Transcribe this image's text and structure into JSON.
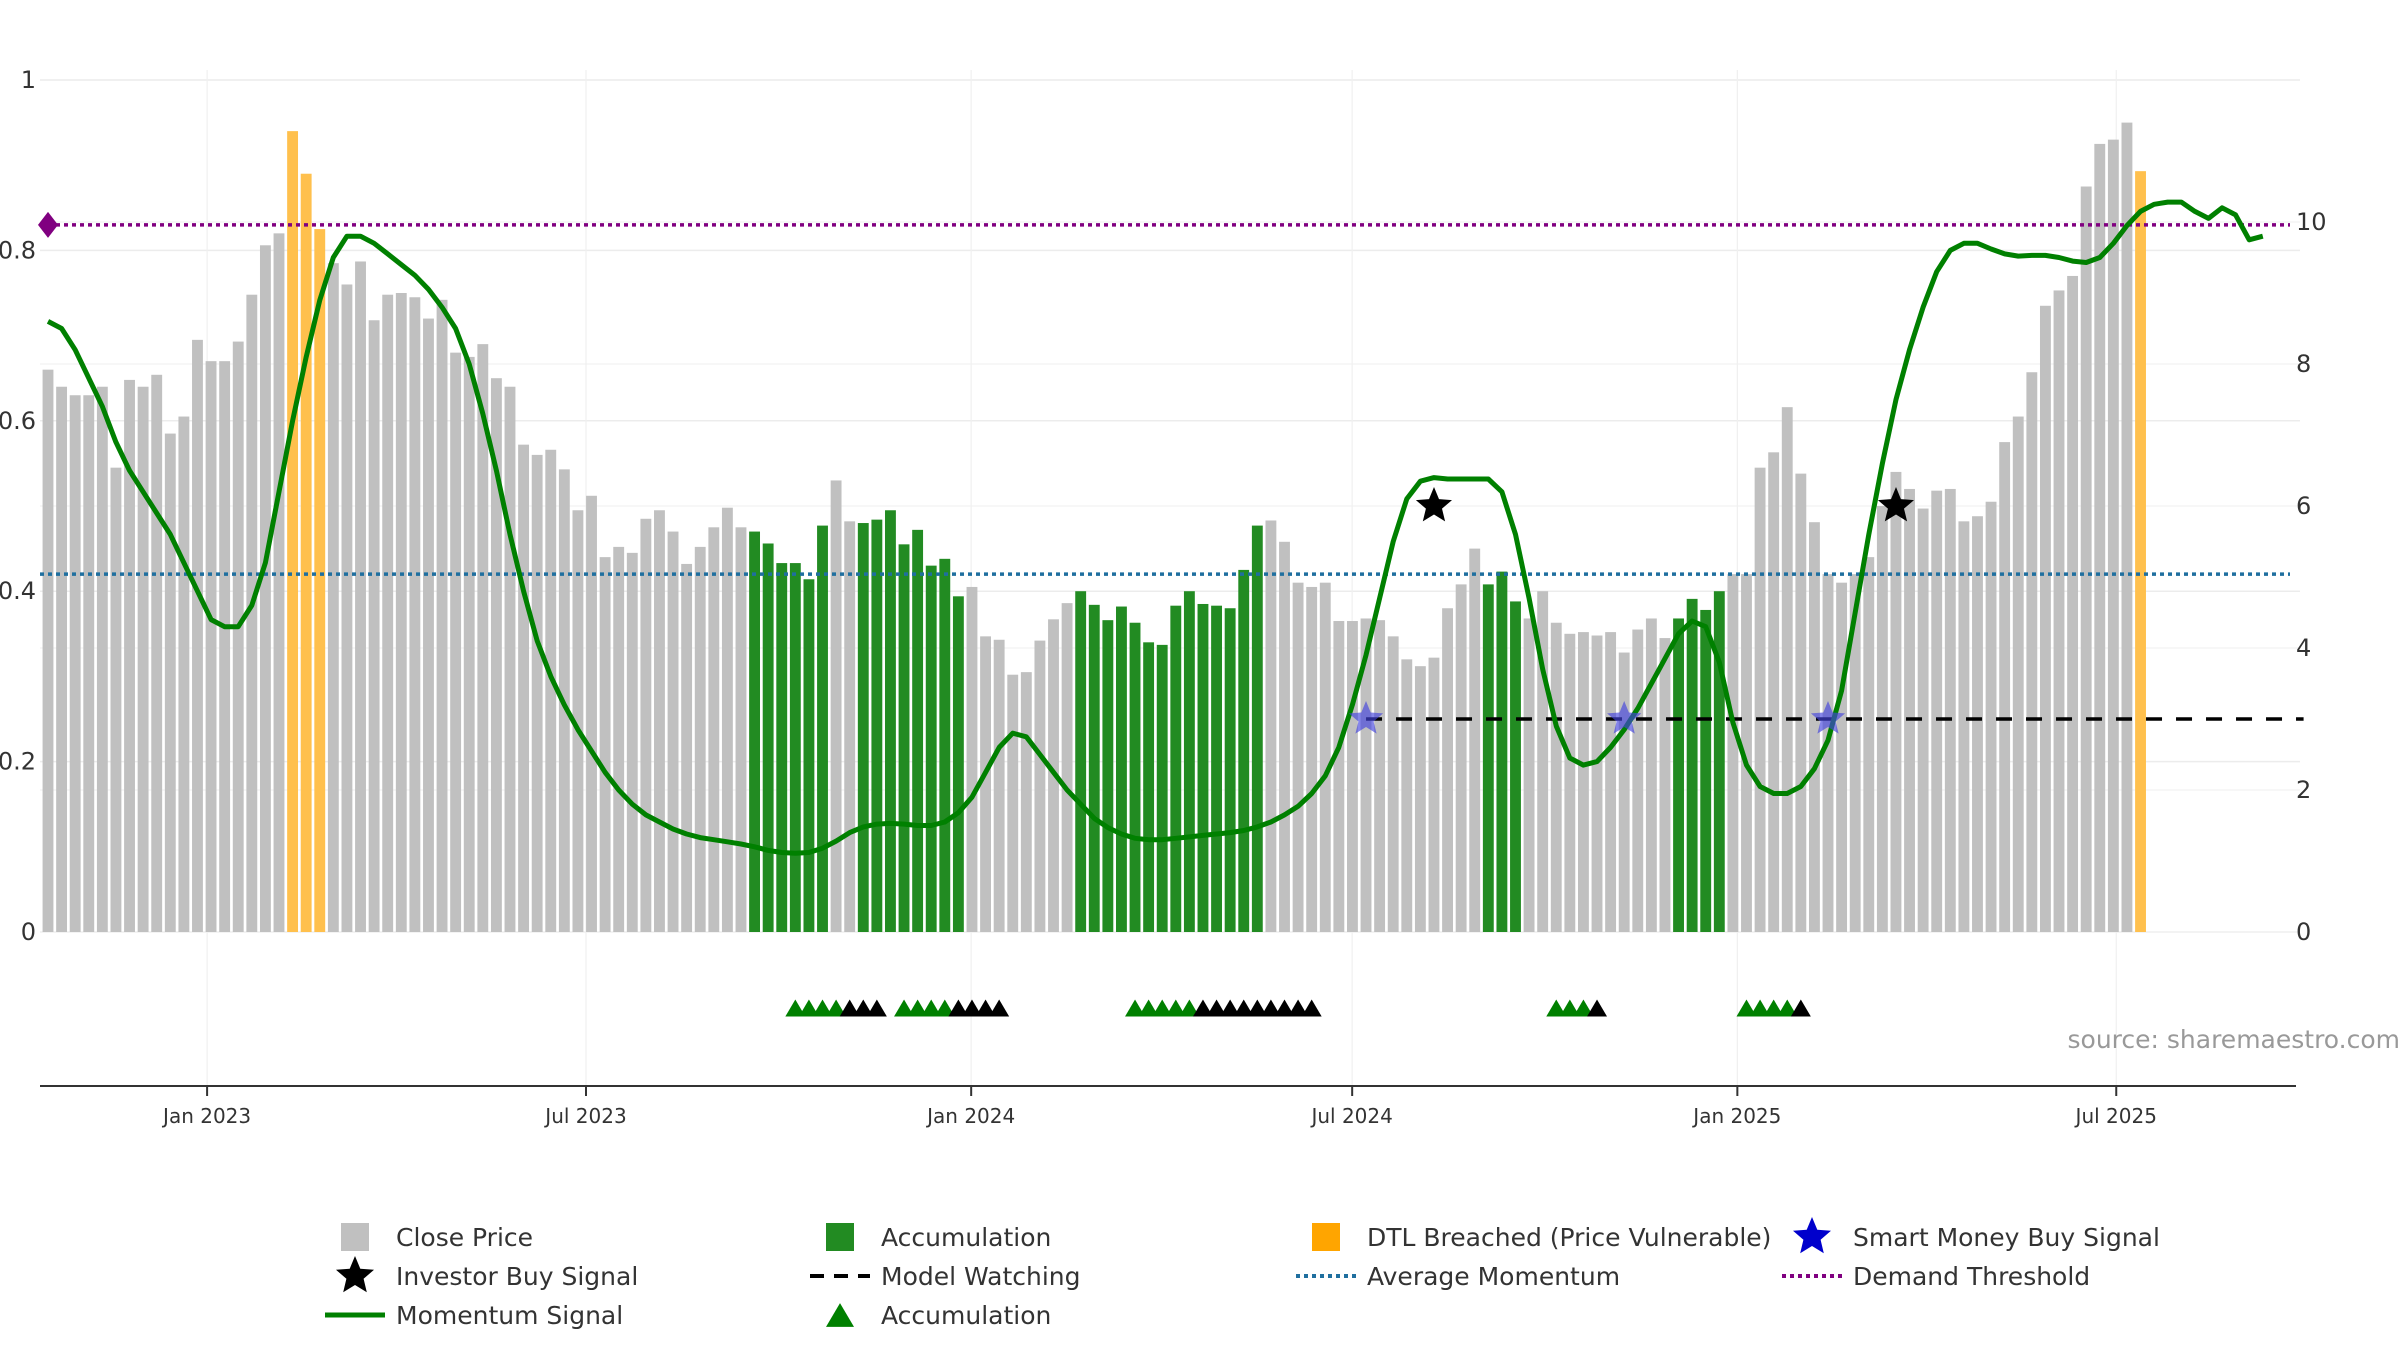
{
  "chart_data": {
    "type": "bar",
    "x_ticks": [
      "Jan 2023",
      "Jul 2023",
      "Jan 2024",
      "Jul 2024",
      "Jan 2025",
      "Jul 2025"
    ],
    "left_axis": {
      "ticks": [
        "0",
        "0.2",
        "0.4",
        "0.6",
        "0.8",
        "1"
      ],
      "ylim": [
        0,
        1
      ]
    },
    "right_axis": {
      "ticks": [
        "0",
        "2",
        "4",
        "6",
        "8",
        "10"
      ],
      "ylim": [
        0,
        12
      ]
    },
    "date_range": [
      "2022-10-17",
      "2025-09-22"
    ],
    "grid": true,
    "legend_placement": "bottom-center",
    "source": "source: sharemaestro.com",
    "colors": {
      "close": "#c0c0c0",
      "accumulation": "#228b22",
      "dtl": "#ffc04d",
      "momentum": "#008000",
      "average": "#1f6f9f",
      "threshold": "#800080",
      "smart_money": "#0000cc",
      "investor": "#000000",
      "watching": "#000000"
    },
    "close_prices": [
      0.66,
      0.64,
      0.63,
      0.63,
      0.64,
      0.545,
      0.648,
      0.64,
      0.654,
      0.585,
      0.605,
      0.695,
      0.67,
      0.67,
      0.693,
      0.748,
      0.806,
      0.82,
      0.94,
      0.89,
      0.825,
      0.785,
      0.76,
      0.787,
      0.718,
      0.748,
      0.75,
      0.745,
      0.72,
      0.742,
      0.68,
      0.675,
      0.69,
      0.65,
      0.64,
      0.572,
      0.56,
      0.566,
      0.543,
      0.495,
      0.512,
      0.44,
      0.452,
      0.445,
      0.485,
      0.495,
      0.47,
      0.432,
      0.452,
      0.475,
      0.498,
      0.475,
      0.47,
      0.456,
      0.433,
      0.433,
      0.414,
      0.477,
      0.53,
      0.482,
      0.48,
      0.484,
      0.495,
      0.455,
      0.472,
      0.43,
      0.438,
      0.394,
      0.405,
      0.347,
      0.343,
      0.302,
      0.305,
      0.342,
      0.367,
      0.386,
      0.4,
      0.384,
      0.366,
      0.382,
      0.363,
      0.34,
      0.337,
      0.383,
      0.4,
      0.385,
      0.383,
      0.38,
      0.425,
      0.477,
      0.483,
      0.458,
      0.41,
      0.405,
      0.41,
      0.365,
      0.365,
      0.368,
      0.366,
      0.347,
      0.32,
      0.312,
      0.322,
      0.38,
      0.408,
      0.45,
      0.408,
      0.423,
      0.388,
      0.368,
      0.4,
      0.363,
      0.35,
      0.352,
      0.348,
      0.352,
      0.328,
      0.355,
      0.368,
      0.345,
      0.368,
      0.391,
      0.378,
      0.4,
      0.42,
      0.42,
      0.545,
      0.563,
      0.616,
      0.538,
      0.481,
      0.42,
      0.41,
      0.42,
      0.44,
      0.5,
      0.54,
      0.52,
      0.497,
      0.518,
      0.52,
      0.482,
      0.488,
      0.505,
      0.575,
      0.605,
      0.657,
      0.735,
      0.753,
      0.77,
      0.875,
      0.925,
      0.93,
      0.95,
      0.893
    ],
    "accumulation_ranges": [
      [
        52,
        57
      ],
      [
        60,
        67
      ],
      [
        76,
        89
      ],
      [
        106,
        108
      ],
      [
        120,
        123
      ]
    ],
    "dtl_ranges": [
      [
        18,
        20
      ],
      [
        154,
        158
      ]
    ],
    "momentum_signal": [
      [
        0,
        8.6
      ],
      [
        1,
        8.5
      ],
      [
        2,
        8.2
      ],
      [
        3,
        7.8
      ],
      [
        4,
        7.4
      ],
      [
        5,
        6.9
      ],
      [
        6,
        6.5
      ],
      [
        7,
        6.2
      ],
      [
        8,
        5.9
      ],
      [
        9,
        5.6
      ],
      [
        10,
        5.2
      ],
      [
        11,
        4.8
      ],
      [
        12,
        4.4
      ],
      [
        13,
        4.3
      ],
      [
        14,
        4.3
      ],
      [
        15,
        4.6
      ],
      [
        16,
        5.2
      ],
      [
        17,
        6.2
      ],
      [
        18,
        7.2
      ],
      [
        19,
        8.1
      ],
      [
        20,
        8.9
      ],
      [
        21,
        9.5
      ],
      [
        22,
        9.8
      ],
      [
        23,
        9.8
      ],
      [
        24,
        9.7
      ],
      [
        25,
        9.55
      ],
      [
        26,
        9.4
      ],
      [
        27,
        9.25
      ],
      [
        28,
        9.05
      ],
      [
        29,
        8.8
      ],
      [
        30,
        8.5
      ],
      [
        31,
        8.0
      ],
      [
        32,
        7.3
      ],
      [
        33,
        6.5
      ],
      [
        34,
        5.6
      ],
      [
        35,
        4.8
      ],
      [
        36,
        4.1
      ],
      [
        37,
        3.6
      ],
      [
        38,
        3.2
      ],
      [
        39,
        2.85
      ],
      [
        40,
        2.55
      ],
      [
        41,
        2.25
      ],
      [
        42,
        2.0
      ],
      [
        43,
        1.8
      ],
      [
        44,
        1.65
      ],
      [
        45,
        1.55
      ],
      [
        46,
        1.45
      ],
      [
        47,
        1.38
      ],
      [
        48,
        1.33
      ],
      [
        49,
        1.3
      ],
      [
        50,
        1.27
      ],
      [
        51,
        1.24
      ],
      [
        52,
        1.2
      ],
      [
        53,
        1.15
      ],
      [
        54,
        1.12
      ],
      [
        55,
        1.11
      ],
      [
        56,
        1.12
      ],
      [
        57,
        1.18
      ],
      [
        58,
        1.28
      ],
      [
        59,
        1.4
      ],
      [
        60,
        1.48
      ],
      [
        61,
        1.52
      ],
      [
        62,
        1.53
      ],
      [
        63,
        1.52
      ],
      [
        64,
        1.5
      ],
      [
        65,
        1.5
      ],
      [
        66,
        1.55
      ],
      [
        67,
        1.68
      ],
      [
        68,
        1.9
      ],
      [
        69,
        2.25
      ],
      [
        70,
        2.6
      ],
      [
        71,
        2.8
      ],
      [
        72,
        2.75
      ],
      [
        73,
        2.5
      ],
      [
        74,
        2.25
      ],
      [
        75,
        2.0
      ],
      [
        76,
        1.8
      ],
      [
        77,
        1.6
      ],
      [
        78,
        1.47
      ],
      [
        79,
        1.38
      ],
      [
        80,
        1.32
      ],
      [
        81,
        1.3
      ],
      [
        82,
        1.3
      ],
      [
        83,
        1.32
      ],
      [
        84,
        1.34
      ],
      [
        85,
        1.36
      ],
      [
        86,
        1.38
      ],
      [
        87,
        1.4
      ],
      [
        88,
        1.43
      ],
      [
        89,
        1.48
      ],
      [
        90,
        1.55
      ],
      [
        91,
        1.65
      ],
      [
        92,
        1.77
      ],
      [
        93,
        1.95
      ],
      [
        94,
        2.2
      ],
      [
        95,
        2.6
      ],
      [
        96,
        3.2
      ],
      [
        97,
        3.9
      ],
      [
        98,
        4.7
      ],
      [
        99,
        5.5
      ],
      [
        100,
        6.1
      ],
      [
        101,
        6.35
      ],
      [
        102,
        6.4
      ],
      [
        103,
        6.38
      ],
      [
        104,
        6.38
      ],
      [
        105,
        6.38
      ],
      [
        106,
        6.38
      ],
      [
        107,
        6.2
      ],
      [
        108,
        5.6
      ],
      [
        109,
        4.7
      ],
      [
        110,
        3.7
      ],
      [
        111,
        2.9
      ],
      [
        112,
        2.45
      ],
      [
        113,
        2.35
      ],
      [
        114,
        2.4
      ],
      [
        115,
        2.6
      ],
      [
        116,
        2.85
      ],
      [
        117,
        3.15
      ],
      [
        118,
        3.5
      ],
      [
        119,
        3.85
      ],
      [
        120,
        4.2
      ],
      [
        121,
        4.38
      ],
      [
        122,
        4.3
      ],
      [
        123,
        3.8
      ],
      [
        124,
        2.95
      ],
      [
        125,
        2.35
      ],
      [
        126,
        2.05
      ],
      [
        127,
        1.95
      ],
      [
        128,
        1.95
      ],
      [
        129,
        2.05
      ],
      [
        130,
        2.3
      ],
      [
        131,
        2.7
      ],
      [
        132,
        3.4
      ],
      [
        133,
        4.5
      ],
      [
        134,
        5.6
      ],
      [
        135,
        6.6
      ],
      [
        136,
        7.5
      ],
      [
        137,
        8.2
      ],
      [
        138,
        8.8
      ],
      [
        139,
        9.3
      ],
      [
        140,
        9.6
      ],
      [
        141,
        9.7
      ],
      [
        142,
        9.7
      ],
      [
        143,
        9.62
      ],
      [
        144,
        9.55
      ],
      [
        145,
        9.52
      ],
      [
        146,
        9.53
      ],
      [
        147,
        9.53
      ],
      [
        148,
        9.5
      ],
      [
        149,
        9.45
      ],
      [
        150,
        9.43
      ],
      [
        151,
        9.5
      ],
      [
        152,
        9.7
      ],
      [
        153,
        9.95
      ],
      [
        154,
        10.15
      ],
      [
        155,
        10.25
      ],
      [
        156,
        10.28
      ],
      [
        157,
        10.28
      ],
      [
        158,
        10.15
      ],
      [
        159,
        10.05
      ],
      [
        160,
        10.2
      ],
      [
        161,
        10.1
      ],
      [
        162,
        9.75
      ],
      [
        163,
        9.8
      ]
    ],
    "average_momentum": 0.42,
    "demand_threshold": 0.83,
    "investor_buy_signals": [
      {
        "index": 102,
        "value": 0.5
      },
      {
        "index": 136,
        "value": 0.5
      }
    ],
    "smart_money_buy_signals": [
      {
        "index": 97,
        "value": 0.25
      },
      {
        "index": 116,
        "value": 0.25
      },
      {
        "index": 131,
        "value": 0.25
      }
    ],
    "model_watching_start": 97,
    "model_watching_end": 166,
    "accumulation_triangles": [
      {
        "start": 55,
        "end": 61,
        "green": 4
      },
      {
        "start": 63,
        "end": 70,
        "green": 4
      },
      {
        "start": 80,
        "end": 93,
        "green": 5
      },
      {
        "start": 111,
        "end": 114,
        "green": 3
      },
      {
        "start": 125,
        "end": 129,
        "green": 4
      }
    ],
    "legend": [
      {
        "label": "Close Price",
        "marker": "square",
        "color": "#c0c0c0"
      },
      {
        "label": "Accumulation",
        "marker": "square",
        "color": "#228b22"
      },
      {
        "label": "DTL Breached (Price Vulnerable)",
        "marker": "square",
        "color": "#ffa500"
      },
      {
        "label": "Smart Money Buy Signal",
        "marker": "star",
        "color": "#0000cc"
      },
      {
        "label": "Investor Buy Signal",
        "marker": "star",
        "color": "#000000"
      },
      {
        "label": "Model Watching",
        "marker": "dash",
        "color": "#000000"
      },
      {
        "label": "Average Momentum",
        "marker": "dot",
        "color": "#1f6f9f"
      },
      {
        "label": "Demand Threshold",
        "marker": "dot",
        "color": "#800080"
      },
      {
        "label": "Momentum Signal",
        "marker": "line",
        "color": "#008000"
      },
      {
        "label": "Accumulation",
        "marker": "triangle",
        "color": "#008000"
      }
    ]
  }
}
